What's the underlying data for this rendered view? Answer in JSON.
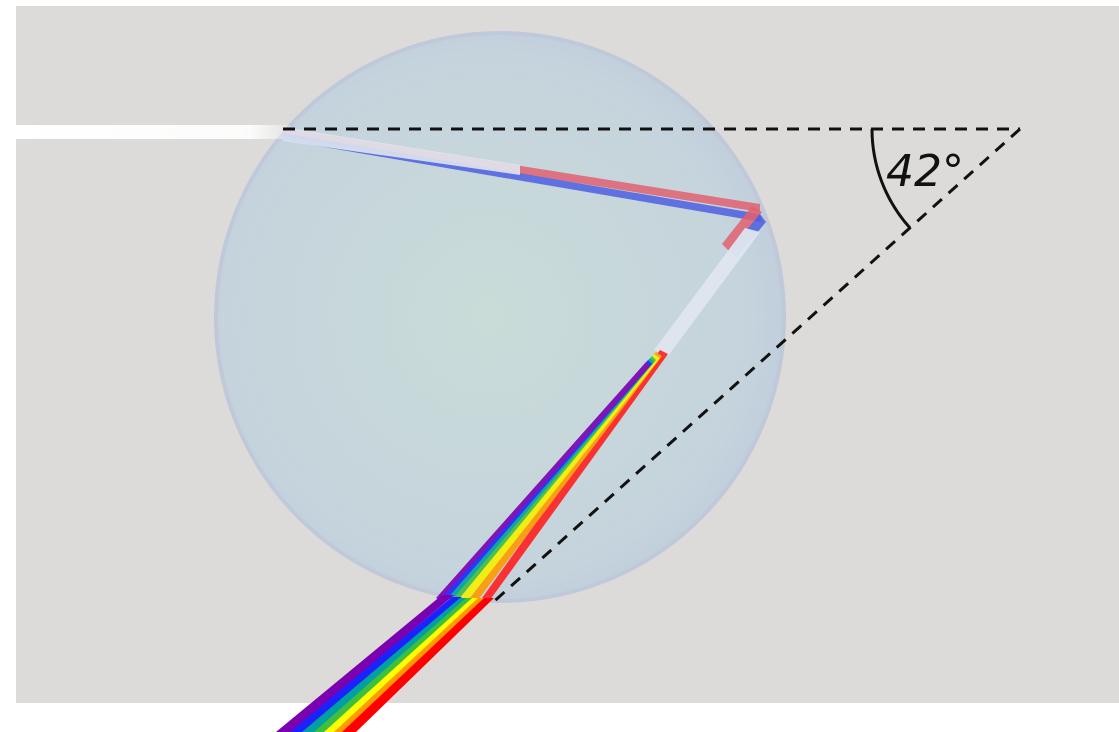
{
  "diagram": {
    "angle_label": "42°"
  },
  "colors": {
    "background": "#dcdbd9",
    "droplet": "#c4d2dc",
    "guide_line": "#111111",
    "incoming_light": "#ffffff",
    "internal_red": "#e05060",
    "internal_blue": "#4a5ee0",
    "spectrum": [
      "#ff0000",
      "#ff9a00",
      "#ffff00",
      "#3fbf3f",
      "#00a0a0",
      "#1c22ff",
      "#7a00b0"
    ]
  }
}
